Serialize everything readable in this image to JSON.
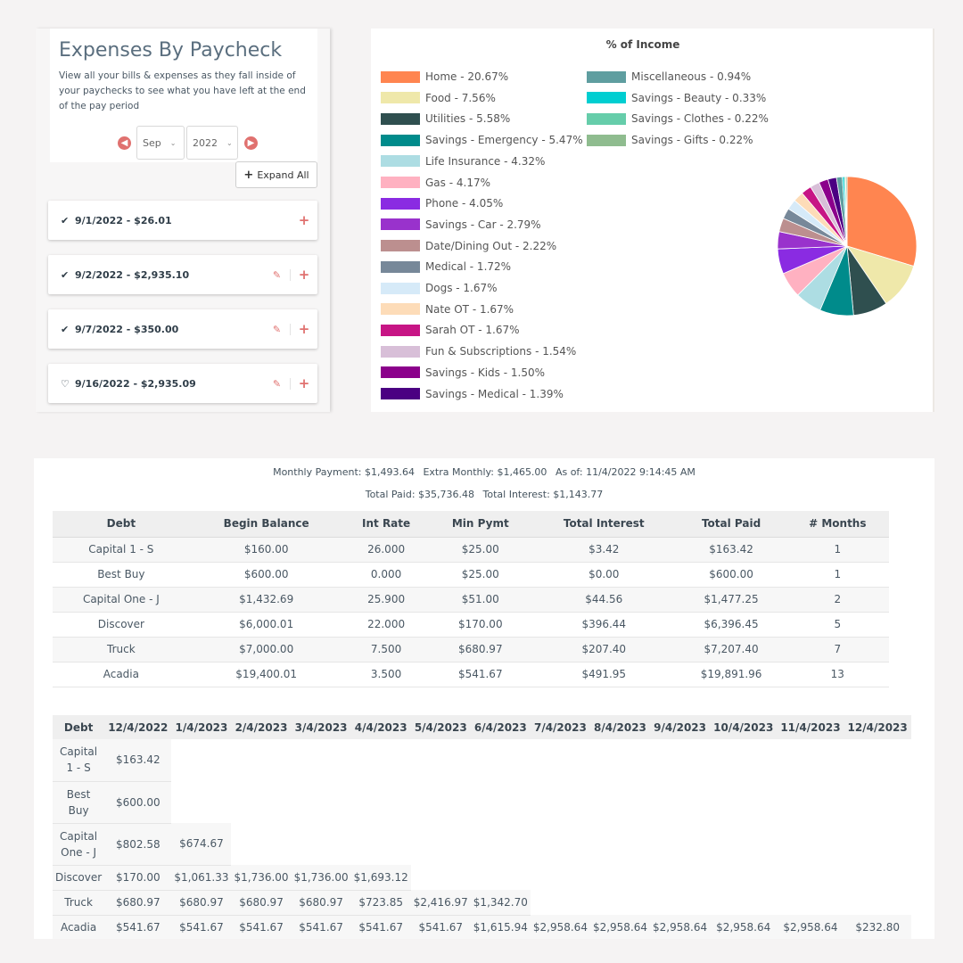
{
  "paycheck_panel": {
    "title": "Expenses By Paycheck",
    "description": "View all your bills & expenses as they fall inside of your paychecks to see what you have left at the end of the pay period",
    "month_select": "Sep",
    "year_select": "2022",
    "expand_all_label": "Expand All",
    "paychecks": [
      {
        "status_icon": "check-icon",
        "label": "9/1/2022 - $26.01",
        "editable": false
      },
      {
        "status_icon": "check-icon",
        "label": "9/2/2022 - $2,935.10",
        "editable": true
      },
      {
        "status_icon": "check-icon",
        "label": "9/7/2022 - $350.00",
        "editable": true
      },
      {
        "status_icon": "bell-icon",
        "label": "9/16/2022 - $2,935.09",
        "editable": true
      }
    ]
  },
  "income_chart": {
    "chart_data": {
      "type": "pie",
      "title": "% of Income",
      "slices": [
        {
          "label": "Home - 20.67%",
          "value": 20.67,
          "color": "#FF8550"
        },
        {
          "label": "Food - 7.56%",
          "value": 7.56,
          "color": "#EFE8AA"
        },
        {
          "label": "Utilities - 5.58%",
          "value": 5.58,
          "color": "#2F4F4F"
        },
        {
          "label": "Savings - Emergency - 5.47%",
          "value": 5.47,
          "color": "#008B8B"
        },
        {
          "label": "Life Insurance - 4.32%",
          "value": 4.32,
          "color": "#ADDDE3"
        },
        {
          "label": "Gas - 4.17%",
          "value": 4.17,
          "color": "#FFB1C1"
        },
        {
          "label": "Phone - 4.05%",
          "value": 4.05,
          "color": "#8A2BE2"
        },
        {
          "label": "Savings - Car - 2.79%",
          "value": 2.79,
          "color": "#9932CC"
        },
        {
          "label": "Date/Dining Out - 2.22%",
          "value": 2.22,
          "color": "#BC8F8F"
        },
        {
          "label": "Medical - 1.72%",
          "value": 1.72,
          "color": "#778899"
        },
        {
          "label": "Dogs - 1.67%",
          "value": 1.67,
          "color": "#D6EAF8"
        },
        {
          "label": "Nate OT - 1.67%",
          "value": 1.67,
          "color": "#FDDCB8"
        },
        {
          "label": "Sarah OT - 1.67%",
          "value": 1.67,
          "color": "#C71585"
        },
        {
          "label": "Fun & Subscriptions - 1.54%",
          "value": 1.54,
          "color": "#D8BFD8"
        },
        {
          "label": "Savings - Kids - 1.50%",
          "value": 1.5,
          "color": "#8B008B"
        },
        {
          "label": "Savings - Medical - 1.39%",
          "value": 1.39,
          "color": "#4B0082"
        },
        {
          "label": "Miscellaneous - 0.94%",
          "value": 0.94,
          "color": "#5F9EA0"
        },
        {
          "label": "Savings - Beauty - 0.33%",
          "value": 0.33,
          "color": "#00CED1"
        },
        {
          "label": "Savings - Clothes - 0.22%",
          "value": 0.22,
          "color": "#66CDAA"
        },
        {
          "label": "Savings - Gifts - 0.22%",
          "value": 0.22,
          "color": "#8FBC8F"
        }
      ],
      "legend_placement": "top-left"
    }
  },
  "debt_summary": {
    "monthly_payment": "Monthly Payment: $1,493.64",
    "extra_monthly": "Extra Monthly: $1,465.00",
    "as_of": "As of: 11/4/2022 9:14:45 AM",
    "total_paid": "Total Paid: $35,736.48",
    "total_interest": "Total Interest: $1,143.77"
  },
  "debt_table": {
    "columns": [
      "Debt",
      "Begin Balance",
      "Int Rate",
      "Min Pymt",
      "Total Interest",
      "Total Paid",
      "# Months"
    ],
    "rows": [
      [
        "Capital 1 - S",
        "$160.00",
        "26.000",
        "$25.00",
        "$3.42",
        "$163.42",
        "1"
      ],
      [
        "Best Buy",
        "$600.00",
        "0.000",
        "$25.00",
        "$0.00",
        "$600.00",
        "1"
      ],
      [
        "Capital One - J",
        "$1,432.69",
        "25.900",
        "$51.00",
        "$44.56",
        "$1,477.25",
        "2"
      ],
      [
        "Discover",
        "$6,000.01",
        "22.000",
        "$170.00",
        "$396.44",
        "$6,396.45",
        "5"
      ],
      [
        "Truck",
        "$7,000.00",
        "7.500",
        "$680.97",
        "$207.40",
        "$7,207.40",
        "7"
      ],
      [
        "Acadia",
        "$19,400.01",
        "3.500",
        "$541.67",
        "$491.95",
        "$19,891.96",
        "13"
      ]
    ]
  },
  "schedule_table": {
    "columns": [
      "Debt",
      "12/4/2022",
      "1/4/2023",
      "2/4/2023",
      "3/4/2023",
      "4/4/2023",
      "5/4/2023",
      "6/4/2023",
      "7/4/2023",
      "8/4/2023",
      "9/4/2023",
      "10/4/2023",
      "11/4/2023",
      "12/4/2023"
    ],
    "rows": [
      {
        "name": "Capital 1 - S",
        "payments": [
          "$163.42"
        ]
      },
      {
        "name": "Best Buy",
        "payments": [
          "$600.00"
        ]
      },
      {
        "name": "Capital One - J",
        "payments": [
          "$802.58",
          "$674.67"
        ]
      },
      {
        "name": "Discover",
        "payments": [
          "$170.00",
          "$1,061.33",
          "$1,736.00",
          "$1,736.00",
          "$1,693.12"
        ]
      },
      {
        "name": "Truck",
        "payments": [
          "$680.97",
          "$680.97",
          "$680.97",
          "$680.97",
          "$723.85",
          "$2,416.97",
          "$1,342.70"
        ]
      },
      {
        "name": "Acadia",
        "payments": [
          "$541.67",
          "$541.67",
          "$541.67",
          "$541.67",
          "$541.67",
          "$541.67",
          "$1,615.94",
          "$2,958.64",
          "$2,958.64",
          "$2,958.64",
          "$2,958.64",
          "$2,958.64",
          "$232.80"
        ]
      }
    ]
  }
}
